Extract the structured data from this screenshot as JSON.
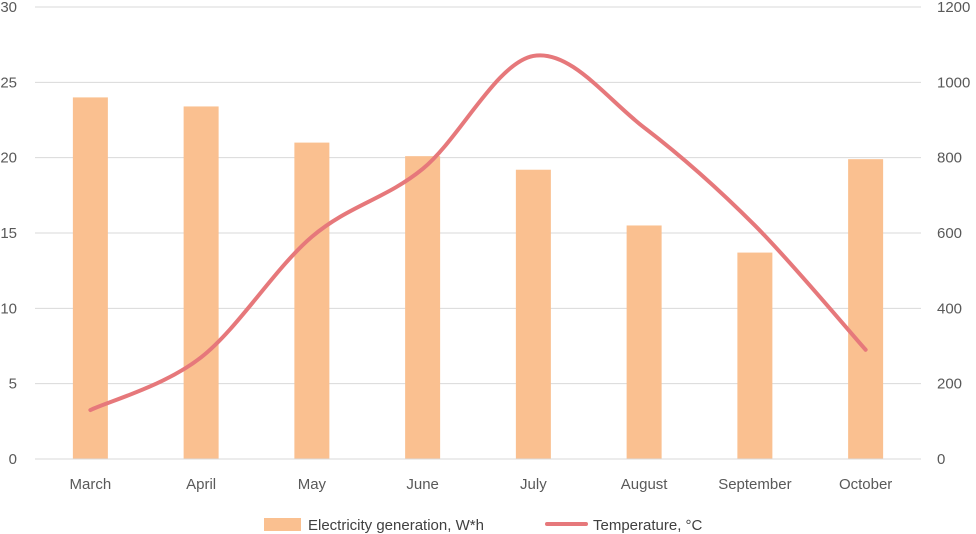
{
  "chart_data": {
    "type": "bar",
    "categories": [
      "March",
      "April",
      "May",
      "June",
      "July",
      "August",
      "September",
      "October"
    ],
    "series": [
      {
        "name": "Electricity generation, W*h",
        "type": "bar",
        "axis": "left",
        "color": "#FAC090",
        "values": [
          24.0,
          23.4,
          21.0,
          20.1,
          19.2,
          15.5,
          13.7,
          19.9
        ]
      },
      {
        "name": "Temperature, °C",
        "type": "line",
        "axis": "right",
        "color": "#E6787B",
        "smooth": true,
        "values": [
          130,
          270,
          590,
          770,
          1070,
          880,
          620,
          290
        ]
      }
    ],
    "y_left": {
      "ylim": [
        0,
        30
      ],
      "ticks": [
        0,
        5,
        10,
        15,
        20,
        25,
        30
      ]
    },
    "y_right": {
      "ylim": [
        0,
        1200
      ],
      "ticks": [
        0,
        200,
        400,
        600,
        800,
        1000,
        1200
      ]
    },
    "grid": true,
    "legend": "bottom"
  }
}
